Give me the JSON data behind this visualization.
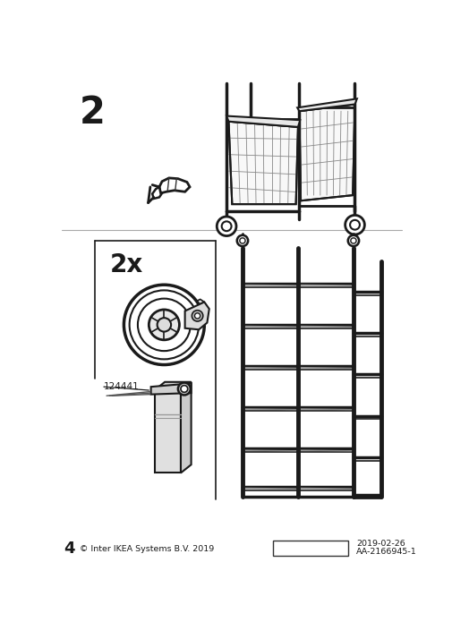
{
  "page_number": "4",
  "copyright": "© Inter IKEA Systems B.V. 2019",
  "date": "2019-02-26",
  "code": "AA-2166945-1",
  "step_number": "2",
  "quantity": "2x",
  "part_number": "124441",
  "bg_color": "#ffffff",
  "line_color": "#1a1a1a",
  "gray_light": "#cccccc",
  "gray_mid": "#999999",
  "gray_dark": "#555555",
  "fig_width": 5.06,
  "fig_height": 7.14,
  "dpi": 100
}
